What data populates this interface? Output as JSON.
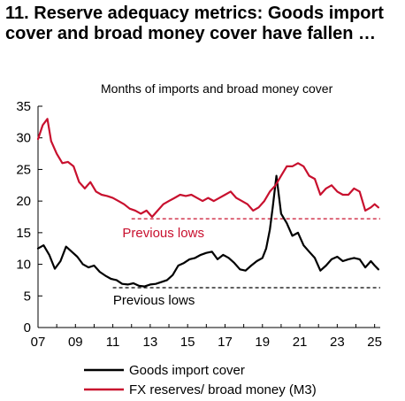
{
  "chart_data": {
    "type": "line",
    "title": "11. Reserve adequacy metrics: Goods import cover and broad money cover have fallen …",
    "subtitle": "Months of imports and broad money cover",
    "xlabel": "",
    "ylabel": "",
    "xlim": [
      2007,
      2025.3
    ],
    "ylim": [
      0,
      35
    ],
    "x_ticks": [
      7,
      9,
      11,
      13,
      15,
      17,
      19,
      21,
      23,
      25
    ],
    "x_tick_labels": [
      "07",
      "09",
      "11",
      "13",
      "15",
      "17",
      "19",
      "21",
      "23",
      "25"
    ],
    "y_ticks": [
      0,
      5,
      10,
      15,
      20,
      25,
      30,
      35
    ],
    "y_tick_labels": [
      "0",
      "5",
      "10",
      "15",
      "20",
      "25",
      "30",
      "35"
    ],
    "grid": false,
    "legend_position": "bottom",
    "series": [
      {
        "name": "Goods import cover",
        "color": "#000000",
        "style": "solid",
        "x": [
          2007.0,
          2007.3,
          2007.6,
          2007.9,
          2008.2,
          2008.5,
          2008.8,
          2009.1,
          2009.4,
          2009.7,
          2010.0,
          2010.3,
          2010.6,
          2010.9,
          2011.2,
          2011.5,
          2011.8,
          2012.1,
          2012.4,
          2012.7,
          2013.0,
          2013.3,
          2013.6,
          2013.9,
          2014.2,
          2014.5,
          2014.8,
          2015.1,
          2015.4,
          2015.7,
          2016.0,
          2016.3,
          2016.6,
          2016.9,
          2017.2,
          2017.5,
          2017.8,
          2018.1,
          2018.4,
          2018.7,
          2019.0,
          2019.2,
          2019.4,
          2019.55,
          2019.75,
          2020.0,
          2020.3,
          2020.6,
          2020.9,
          2021.2,
          2021.5,
          2021.8,
          2022.1,
          2022.4,
          2022.7,
          2023.0,
          2023.3,
          2023.6,
          2023.9,
          2024.2,
          2024.5,
          2024.8,
          2025.0,
          2025.2
        ],
        "values": [
          12.5,
          13.0,
          11.5,
          9.3,
          10.5,
          12.8,
          12.0,
          11.2,
          10.0,
          9.5,
          9.8,
          8.8,
          8.2,
          7.7,
          7.5,
          6.9,
          6.8,
          7.0,
          6.6,
          6.5,
          6.8,
          6.9,
          7.2,
          7.5,
          8.3,
          9.8,
          10.2,
          10.8,
          11.0,
          11.5,
          11.8,
          12.0,
          10.8,
          11.5,
          11.0,
          10.2,
          9.2,
          9.0,
          9.8,
          10.5,
          11.0,
          12.5,
          15.5,
          19.0,
          24.0,
          18.0,
          16.5,
          14.5,
          15.0,
          13.0,
          12.0,
          11.0,
          9.0,
          9.8,
          10.8,
          11.2,
          10.5,
          10.8,
          11.0,
          10.8,
          9.5,
          10.5,
          9.8,
          9.2
        ]
      },
      {
        "name": "FX reserves/ broad money (M3)",
        "color": "#c8102e",
        "style": "solid",
        "x": [
          2007.0,
          2007.25,
          2007.5,
          2007.7,
          2008.0,
          2008.3,
          2008.6,
          2008.9,
          2009.2,
          2009.5,
          2009.8,
          2010.1,
          2010.4,
          2010.7,
          2011.0,
          2011.3,
          2011.6,
          2011.9,
          2012.2,
          2012.5,
          2012.8,
          2013.1,
          2013.4,
          2013.7,
          2014.0,
          2014.3,
          2014.6,
          2014.9,
          2015.2,
          2015.5,
          2015.8,
          2016.1,
          2016.4,
          2016.7,
          2017.0,
          2017.3,
          2017.6,
          2017.9,
          2018.2,
          2018.5,
          2018.8,
          2019.1,
          2019.4,
          2019.7,
          2020.0,
          2020.3,
          2020.6,
          2020.9,
          2021.2,
          2021.5,
          2021.8,
          2022.1,
          2022.4,
          2022.7,
          2023.0,
          2023.3,
          2023.6,
          2023.9,
          2024.2,
          2024.5,
          2024.8,
          2025.0,
          2025.2
        ],
        "values": [
          29.8,
          32.0,
          33.0,
          29.5,
          27.5,
          26.0,
          26.2,
          25.5,
          23.0,
          22.0,
          23.0,
          21.5,
          21.0,
          20.8,
          20.5,
          20.0,
          19.5,
          18.8,
          18.5,
          18.0,
          18.5,
          17.5,
          18.5,
          19.5,
          20.0,
          20.5,
          21.0,
          20.8,
          21.0,
          20.5,
          20.0,
          20.5,
          20.0,
          20.5,
          21.0,
          21.5,
          20.5,
          20.0,
          19.5,
          18.5,
          19.0,
          20.0,
          21.5,
          22.5,
          24.0,
          25.5,
          25.5,
          26.0,
          25.5,
          24.0,
          23.5,
          21.0,
          22.0,
          22.5,
          21.5,
          21.0,
          21.0,
          22.0,
          21.5,
          18.5,
          19.0,
          19.5,
          19.0
        ]
      }
    ],
    "reference_lines": [
      {
        "label": "Previous lows",
        "y": 17.2,
        "color": "#c8102e",
        "style": "dashed",
        "x_start": 2012.0,
        "x_end": 2025.3
      },
      {
        "label": "Previous lows",
        "y": 6.3,
        "color": "#000000",
        "style": "dashed",
        "x_start": 2011.0,
        "x_end": 2025.3
      }
    ]
  }
}
